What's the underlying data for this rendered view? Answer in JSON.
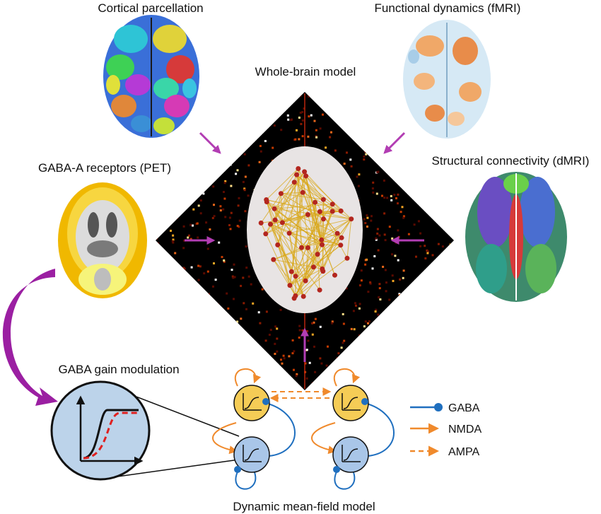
{
  "labels": {
    "cortical_parcellation": "Cortical parcellation",
    "functional_dynamics": "Functional dynamics (fMRI)",
    "whole_brain_model": "Whole-brain model",
    "gaba_receptors": "GABA-A receptors (PET)",
    "structural_connectivity": "Structural connectivity (dMRI)",
    "gaba_gain_modulation": "GABA gain modulation",
    "dynamic_mean_field": "Dynamic mean-field model"
  },
  "legend": [
    {
      "label": "GABA",
      "style": "line-dot",
      "color": "#1f6fbf"
    },
    {
      "label": "NMDA",
      "style": "arrow",
      "color": "#f08a2c"
    },
    {
      "label": "AMPA",
      "style": "dashed-arrow",
      "color": "#f08a2c"
    }
  ],
  "colors": {
    "arrow_magenta": "#b23db3",
    "excitatory_node": "#f5cc56",
    "inhibitory_node": "#a9c6e8",
    "gaba": "#1f6fbf",
    "nmda_ampa": "#f08a2c",
    "matrix_bg": "#000000",
    "network_edges": "#d9a81a",
    "network_nodes": "#b3261e",
    "sigmoid_solid": "#111111",
    "sigmoid_dashed": "#e02020"
  }
}
